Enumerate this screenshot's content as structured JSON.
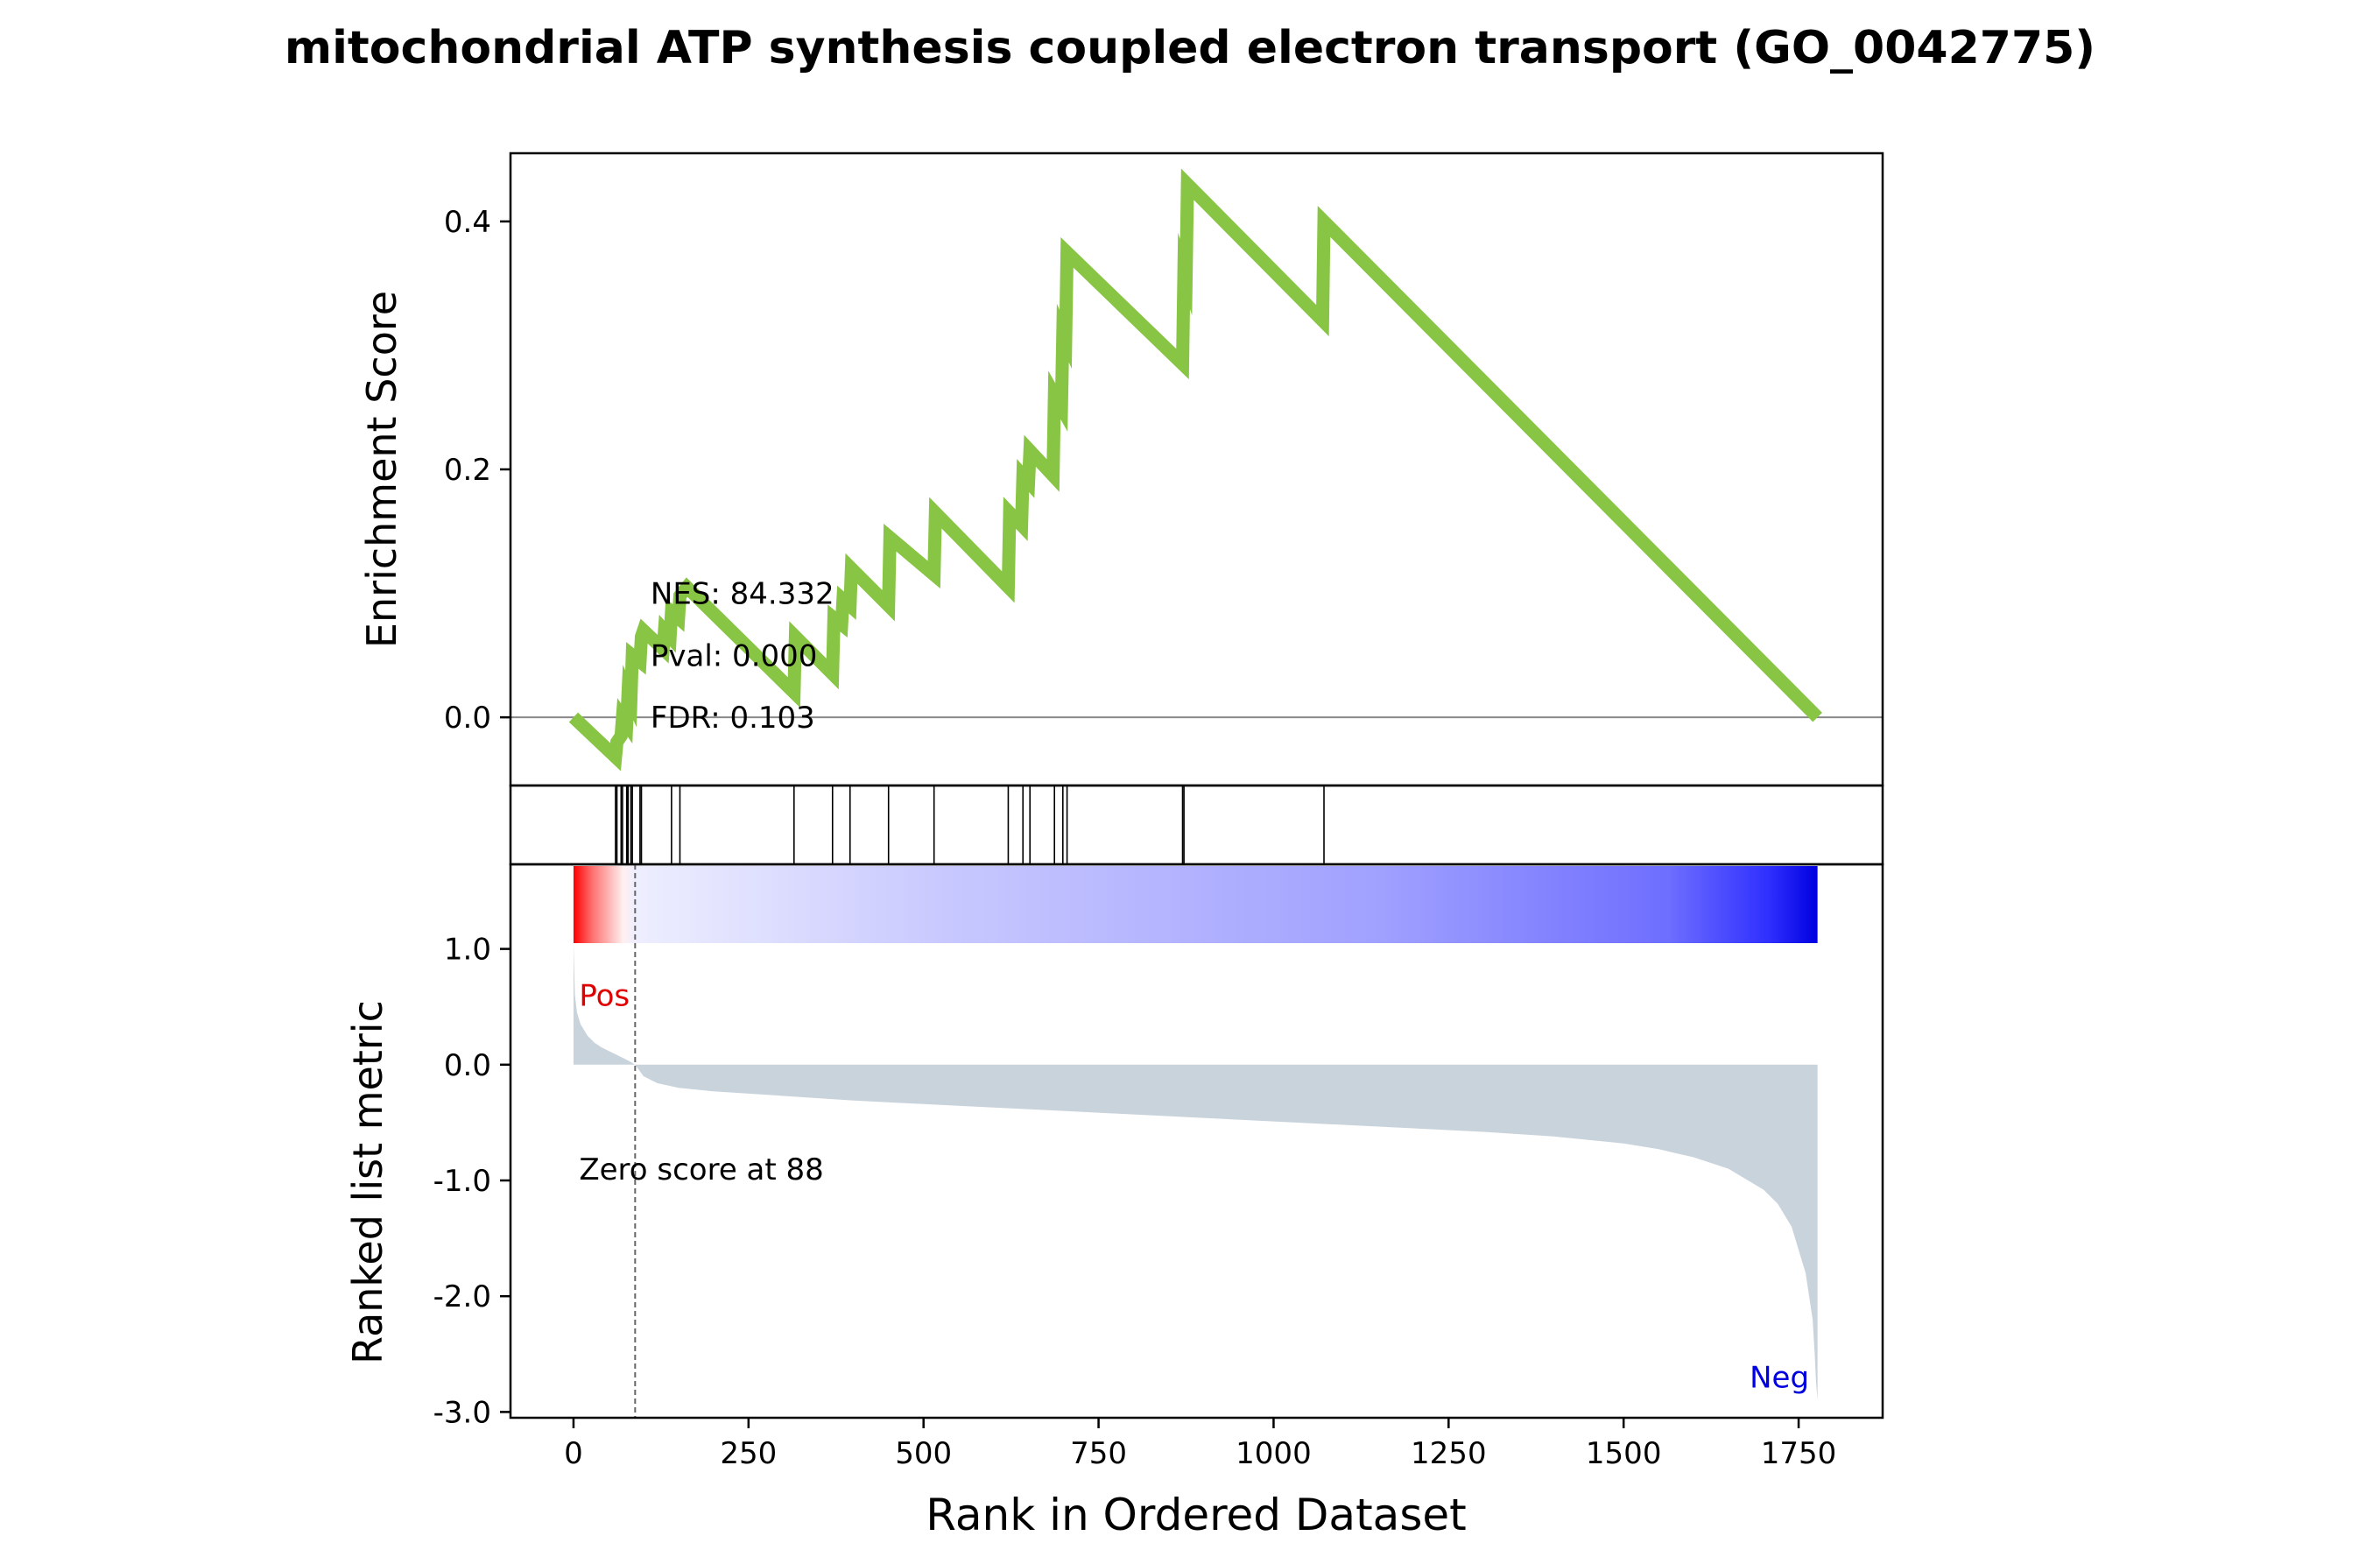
{
  "chart_data": {
    "type": "line",
    "title": "mitochondrial ATP synthesis coupled electron transport (GO_0042775)",
    "xlabel": "Rank in Ordered Dataset",
    "xlim": [
      -90,
      1870
    ],
    "xticks": [
      0,
      250,
      500,
      750,
      1000,
      1250,
      1500,
      1750
    ],
    "es_panel": {
      "ylabel": "Enrichment Score",
      "ylim": [
        -0.055,
        0.455
      ],
      "yticks": [
        "0.0",
        "0.2",
        "0.4"
      ],
      "ytick_values": [
        0.0,
        0.2,
        0.4
      ],
      "zero_line": 0.0,
      "line_color": "#88c544",
      "stats": {
        "nes": "NES: 84.332",
        "pval": "Pval: 0.000",
        "fdr": "FDR: 0.103"
      },
      "series": [
        {
          "x": [
            0,
            60,
            62,
            68,
            70,
            76,
            78,
            82,
            84,
            95,
            97,
            100,
            128,
            130,
            138,
            140,
            150,
            152,
            162,
            315,
            317,
            370,
            372,
            383,
            385,
            395,
            397,
            450,
            452,
            515,
            517,
            621,
            623,
            640,
            642,
            650,
            652,
            685,
            687,
            697,
            699,
            703,
            705,
            870,
            872,
            875,
            877,
            1070,
            1072,
            1777
          ],
          "y": [
            0.0,
            -0.032,
            -0.02,
            -0.015,
            0.0,
            -0.005,
            0.02,
            0.015,
            0.05,
            0.045,
            0.065,
            0.07,
            0.055,
            0.07,
            0.065,
            0.085,
            0.08,
            0.098,
            0.105,
            0.02,
            0.065,
            0.035,
            0.08,
            0.075,
            0.095,
            0.09,
            0.12,
            0.09,
            0.145,
            0.115,
            0.165,
            0.105,
            0.165,
            0.155,
            0.195,
            0.19,
            0.215,
            0.195,
            0.26,
            0.25,
            0.31,
            0.305,
            0.375,
            0.285,
            0.36,
            0.355,
            0.43,
            0.32,
            0.4,
            0.0
          ]
        }
      ]
    },
    "hits_panel": {
      "hit_ranks": [
        60,
        62,
        68,
        70,
        76,
        78,
        82,
        84,
        95,
        97,
        140,
        152,
        315,
        370,
        395,
        450,
        515,
        621,
        642,
        652,
        687,
        699,
        705,
        870,
        872,
        1072
      ]
    },
    "heatmap": {
      "cmap": "bwr",
      "range": [
        0,
        1777
      ],
      "stops": [
        {
          "offset": 0.0,
          "color": "#ff0000"
        },
        {
          "offset": 0.015,
          "color": "#ff7070"
        },
        {
          "offset": 0.04,
          "color": "#fff0f0"
        },
        {
          "offset": 0.05,
          "color": "#eeeeff"
        },
        {
          "offset": 0.3,
          "color": "#c8c8ff"
        },
        {
          "offset": 0.65,
          "color": "#a0a0ff"
        },
        {
          "offset": 0.88,
          "color": "#6e6eff"
        },
        {
          "offset": 0.96,
          "color": "#3030ff"
        },
        {
          "offset": 1.0,
          "color": "#0000e0"
        }
      ]
    },
    "metric_panel": {
      "ylabel": "Ranked list metric",
      "ylim": [
        -3.05,
        1.05
      ],
      "yticks": [
        "1.0",
        "0.0",
        "-1.0",
        "-2.0",
        "-3.0"
      ],
      "ytick_values": [
        1.0,
        0.0,
        -1.0,
        -2.0,
        -3.0
      ],
      "fill_color": "#c9d3dc",
      "pos_label": "Pos",
      "neg_label": "Neg",
      "pos_color": "#e00000",
      "neg_color": "#0000e0",
      "zero_score_rank": 88,
      "zero_score_text": "Zero score at 88",
      "series": [
        {
          "x": [
            0,
            2,
            5,
            10,
            20,
            30,
            40,
            50,
            60,
            70,
            80,
            88,
            100,
            120,
            150,
            200,
            300,
            400,
            500,
            600,
            700,
            800,
            900,
            1000,
            1100,
            1200,
            1300,
            1400,
            1450,
            1500,
            1550,
            1600,
            1650,
            1700,
            1720,
            1740,
            1750,
            1760,
            1765,
            1770,
            1773,
            1775,
            1777
          ],
          "y": [
            1.05,
            0.6,
            0.45,
            0.35,
            0.25,
            0.19,
            0.15,
            0.12,
            0.09,
            0.06,
            0.03,
            0.0,
            -0.1,
            -0.16,
            -0.2,
            -0.23,
            -0.27,
            -0.31,
            -0.34,
            -0.37,
            -0.4,
            -0.43,
            -0.46,
            -0.49,
            -0.52,
            -0.55,
            -0.58,
            -0.62,
            -0.65,
            -0.68,
            -0.73,
            -0.8,
            -0.9,
            -1.08,
            -1.2,
            -1.4,
            -1.6,
            -1.8,
            -2.0,
            -2.2,
            -2.5,
            -2.75,
            -2.9
          ]
        }
      ]
    }
  }
}
